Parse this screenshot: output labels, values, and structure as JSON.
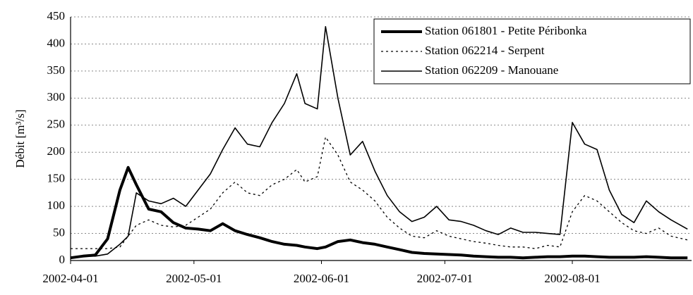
{
  "chart_data": {
    "type": "line",
    "ylabel": "Débit [m³/s]",
    "x": [
      "2002-04-01",
      "2002-04-04",
      "2002-04-07",
      "2002-04-10",
      "2002-04-13",
      "2002-04-15",
      "2002-04-17",
      "2002-04-20",
      "2002-04-23",
      "2002-04-26",
      "2002-04-29",
      "2002-05-02",
      "2002-05-05",
      "2002-05-08",
      "2002-05-11",
      "2002-05-14",
      "2002-05-17",
      "2002-05-20",
      "2002-05-23",
      "2002-05-26",
      "2002-05-28",
      "2002-05-31",
      "2002-06-02",
      "2002-06-05",
      "2002-06-08",
      "2002-06-11",
      "2002-06-14",
      "2002-06-17",
      "2002-06-20",
      "2002-06-23",
      "2002-06-26",
      "2002-06-29",
      "2002-07-02",
      "2002-07-05",
      "2002-07-08",
      "2002-07-11",
      "2002-07-14",
      "2002-07-17",
      "2002-07-20",
      "2002-07-23",
      "2002-07-26",
      "2002-07-29",
      "2002-08-01",
      "2002-08-04",
      "2002-08-07",
      "2002-08-10",
      "2002-08-13",
      "2002-08-16",
      "2002-08-19",
      "2002-08-22",
      "2002-08-25",
      "2002-08-29"
    ],
    "series": [
      {
        "name": "Station 061801 - Petite Péribonka",
        "color": "#000000",
        "width": 4,
        "dash": false,
        "values": [
          5,
          8,
          10,
          40,
          130,
          172,
          140,
          95,
          90,
          70,
          60,
          58,
          55,
          68,
          55,
          48,
          42,
          35,
          30,
          28,
          25,
          22,
          25,
          35,
          38,
          33,
          30,
          25,
          20,
          15,
          13,
          12,
          11,
          10,
          8,
          7,
          6,
          6,
          5,
          6,
          7,
          7,
          8,
          8,
          7,
          6,
          6,
          6,
          7,
          6,
          5,
          5
        ]
      },
      {
        "name": "Station 062214 - Serpent",
        "color": "#000000",
        "width": 1.3,
        "dash": true,
        "values": [
          22,
          22,
          22,
          22,
          25,
          45,
          65,
          75,
          65,
          62,
          65,
          80,
          95,
          125,
          145,
          125,
          120,
          140,
          150,
          168,
          145,
          155,
          228,
          195,
          145,
          130,
          110,
          80,
          60,
          45,
          42,
          55,
          45,
          40,
          35,
          32,
          28,
          25,
          25,
          22,
          28,
          25,
          90,
          120,
          110,
          90,
          70,
          55,
          50,
          60,
          45,
          38
        ]
      },
      {
        "name": "Station 062209 - Manouane",
        "color": "#000000",
        "width": 1.6,
        "dash": false,
        "values": [
          5,
          8,
          8,
          12,
          30,
          45,
          125,
          110,
          105,
          115,
          100,
          130,
          160,
          205,
          245,
          215,
          210,
          255,
          290,
          345,
          290,
          280,
          432,
          300,
          195,
          220,
          165,
          120,
          90,
          72,
          80,
          100,
          75,
          72,
          65,
          55,
          48,
          60,
          52,
          52,
          50,
          48,
          255,
          215,
          205,
          130,
          85,
          70,
          110,
          90,
          75,
          58
        ]
      }
    ],
    "xlim": [
      "2002-04-01",
      "2002-08-30"
    ],
    "xticks": [
      "2002-04-01",
      "2002-05-01",
      "2002-06-01",
      "2002-07-01",
      "2002-08-01"
    ],
    "ylim": [
      0,
      450
    ],
    "yticks": [
      0,
      50,
      100,
      150,
      200,
      250,
      300,
      350,
      400,
      450
    ],
    "grid": true,
    "legend": "upper right"
  }
}
